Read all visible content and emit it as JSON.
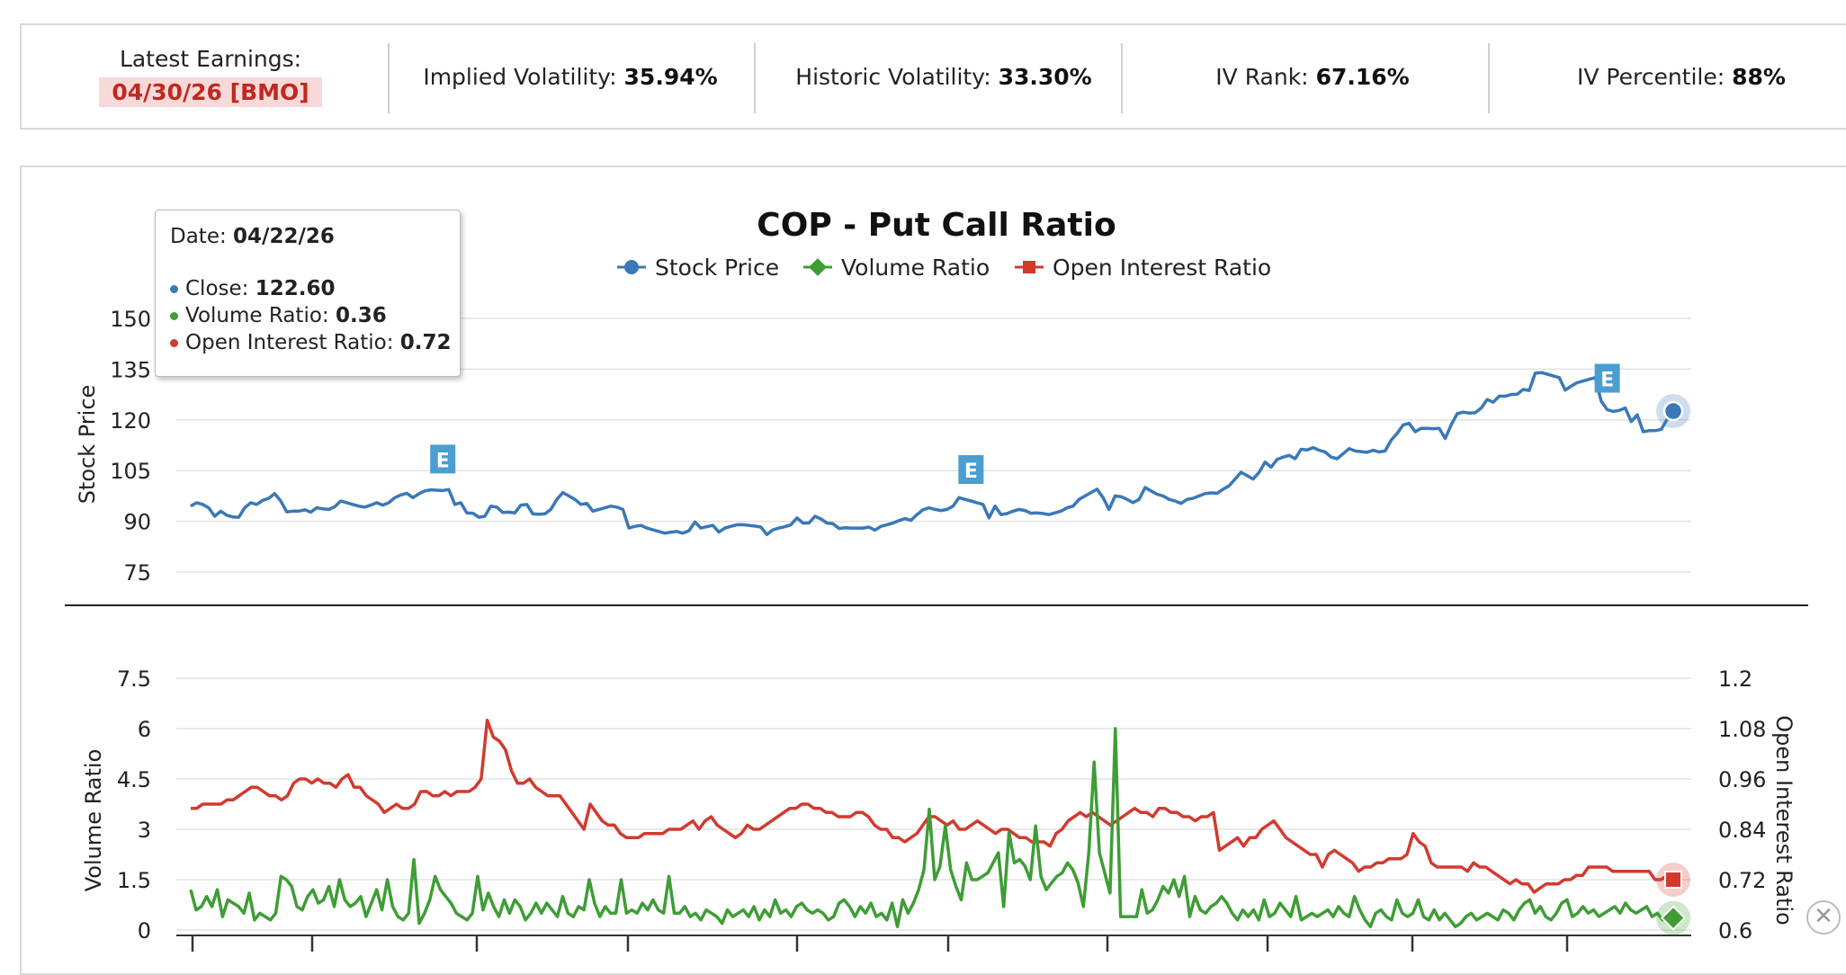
{
  "header": {
    "earnings_label": "Latest Earnings:",
    "earnings_date": "04/30/26 [BMO]",
    "stats": [
      {
        "label": "Implied Volatility:",
        "value": "35.94%"
      },
      {
        "label": "Historic Volatility:",
        "value": "33.30%"
      },
      {
        "label": "IV Rank:",
        "value": "67.16%"
      },
      {
        "label": "IV Percentile:",
        "value": "88%"
      }
    ]
  },
  "tooltip": {
    "date_label": "Date:",
    "date_value": "04/22/26",
    "close_label": "Close:",
    "close_value": "122.60",
    "volume_label": "Volume Ratio:",
    "volume_value": "0.36",
    "oi_label": "Open Interest Ratio:",
    "oi_value": "0.72"
  },
  "colors": {
    "stock": "#3a78b8",
    "volume": "#3e9d35",
    "open_interest": "#d23a2e",
    "earnings_marker": "#4a9ed1",
    "earnings_date_bg": "#f8d9d9",
    "earnings_date_text": "#c0281f"
  },
  "close_icon": "close-icon",
  "chart_data": {
    "type": "line",
    "title": "COP - Put Call Ratio",
    "legend": [
      "Stock Price",
      "Volume Ratio",
      "Open Interest Ratio"
    ],
    "legend_position": "top-center",
    "earnings_marker_label": "E",
    "earnings_markers": [
      42,
      130,
      236
    ],
    "upper": {
      "ylabel": "Stock Price",
      "ylim": [
        75,
        150
      ],
      "yticks": [
        "150",
        "135",
        "120",
        "105",
        "90",
        "75"
      ],
      "series": [
        {
          "name": "Stock Price",
          "values": [
            94.5,
            95.5,
            95,
            94,
            91.5,
            93,
            91.8,
            91.3,
            91.2,
            94,
            95.5,
            95,
            96.2,
            96.8,
            98.2,
            96,
            92.8,
            93,
            93,
            93.4,
            92.7,
            94,
            93.7,
            93.5,
            94.3,
            96,
            95.5,
            95,
            94.5,
            94.2,
            94.8,
            95.5,
            94.8,
            95.5,
            97,
            97.8,
            98.3,
            97,
            98.1,
            99,
            99.3,
            99.2,
            99.1,
            99.4,
            95,
            95.5,
            92.5,
            92.4,
            91.2,
            91.5,
            94.5,
            94.2,
            92.6,
            92.7,
            92.5,
            94.8,
            95,
            92.2,
            92.1,
            92.2,
            93.5,
            96.5,
            98.5,
            97.5,
            96.5,
            95,
            95.3,
            93,
            93.5,
            94,
            94.5,
            94.2,
            93.5,
            88,
            88.5,
            88.8,
            88,
            87.5,
            87,
            86.5,
            86.8,
            87,
            86.5,
            87.2,
            89.8,
            88,
            88.4,
            88.8,
            86.8,
            88,
            88.5,
            89,
            89,
            88.8,
            88.6,
            88.3,
            86.1,
            87.5,
            88,
            88.4,
            89,
            91,
            89.5,
            89.5,
            91.5,
            90.7,
            89.5,
            89.3,
            87.9,
            88.1,
            88,
            88,
            88,
            88.3,
            87.4,
            88.5,
            89,
            89.5,
            90.2,
            90.8,
            90.3,
            92,
            93.4,
            94,
            93.5,
            93.2,
            93.5,
            94.5,
            97,
            96.5,
            96,
            95.5,
            95,
            91,
            94.5,
            92,
            92.3,
            93,
            93.5,
            93.2,
            92.4,
            92.5,
            92.3,
            92,
            92.5,
            93,
            94,
            94.5,
            96.5,
            97.5,
            98.5,
            99.5,
            97,
            93.5,
            97.5,
            97.3,
            96.5,
            95.5,
            96.5,
            100,
            99,
            98,
            97.5,
            96.5,
            96,
            95.3,
            96.5,
            96.8,
            97.5,
            98.2,
            98.4,
            98.3,
            99.5,
            100.5,
            102.5,
            104.5,
            103.5,
            102.5,
            104.5,
            107.5,
            106,
            108.3,
            109,
            109.5,
            108.5,
            111.3,
            111.1,
            111.8,
            111,
            110.5,
            109,
            108.5,
            110,
            111.5,
            110.8,
            110.6,
            110.4,
            111,
            110.5,
            110.8,
            114,
            116,
            118.5,
            119,
            116.5,
            117.5,
            117.5,
            117.4,
            117.5,
            114.5,
            118.5,
            121.8,
            122.3,
            122,
            122.1,
            123.5,
            126,
            125.2,
            127,
            127,
            127.5,
            127.6,
            129,
            128.7,
            133.8,
            134,
            133.5,
            133,
            132.5,
            128.8,
            130,
            131,
            131.5,
            132,
            132.5,
            125.5,
            123,
            122.5,
            122.8,
            123.5,
            119.5,
            121.5,
            116.5,
            116.8,
            116.8,
            117.2,
            120.2,
            122.6
          ]
        }
      ]
    },
    "lower": {
      "ylabel_left": "Volume Ratio",
      "ylabel_right": "Open Interest Ratio",
      "ylim_left": [
        0,
        7.5
      ],
      "ylim_right": [
        0.6,
        1.2
      ],
      "yticks_left": [
        "7.5",
        "6",
        "4.5",
        "3",
        "1.5",
        "0"
      ],
      "yticks_right": [
        "1.2",
        "1.08",
        "0.96",
        "0.84",
        "0.72",
        "0.6"
      ],
      "series": [
        {
          "name": "Volume Ratio",
          "axis": "left",
          "values": [
            1.2,
            0.6,
            0.7,
            1,
            0.7,
            1.2,
            0.4,
            0.9,
            0.8,
            0.7,
            0.5,
            1.1,
            0.3,
            0.5,
            0.4,
            0.3,
            0.5,
            1.6,
            1.5,
            1.3,
            0.7,
            0.6,
            1,
            1.2,
            0.8,
            0.9,
            1.3,
            0.7,
            1.5,
            0.9,
            0.7,
            0.8,
            1,
            0.4,
            0.8,
            1.2,
            0.6,
            1.5,
            0.7,
            0.4,
            0.3,
            0.5,
            2.1,
            0.2,
            0.5,
            0.9,
            1.6,
            1.2,
            1,
            0.8,
            0.5,
            0.4,
            0.3,
            0.5,
            1.6,
            0.6,
            1.1,
            0.7,
            0.4,
            0.9,
            0.5,
            0.9,
            0.7,
            0.3,
            0.5,
            0.8,
            0.5,
            0.8,
            0.6,
            0.4,
            1,
            0.5,
            0.4,
            0.7,
            0.6,
            1.5,
            0.8,
            0.4,
            0.7,
            0.5,
            0.5,
            1.5,
            0.5,
            0.6,
            0.5,
            0.8,
            0.6,
            0.9,
            0.6,
            0.5,
            1.6,
            0.5,
            0.5,
            0.7,
            0.4,
            0.5,
            0.3,
            0.6,
            0.5,
            0.4,
            0.2,
            0.6,
            0.4,
            0.5,
            0.6,
            0.4,
            0.7,
            0.3,
            0.6,
            0.4,
            0.9,
            0.5,
            0.6,
            0.4,
            0.7,
            0.8,
            0.6,
            0.5,
            0.6,
            0.5,
            0.3,
            0.4,
            0.8,
            0.9,
            0.7,
            0.4,
            0.7,
            0.5,
            0.8,
            0.4,
            0.5,
            0.3,
            0.8,
            0.1,
            0.9,
            0.5,
            0.8,
            1.2,
            1.8,
            3.6,
            1.5,
            1.9,
            3.1,
            1.8,
            1.3,
            0.9,
            2,
            1.5,
            1.5,
            1.6,
            1.7,
            2,
            2.3,
            0.7,
            2.9,
            2,
            2.1,
            1.9,
            1.5,
            3.1,
            1.6,
            1.2,
            1.4,
            1.6,
            1.7,
            2,
            1.8,
            1.4,
            0.7,
            2.3,
            5,
            2.3,
            1.7,
            1.1,
            6,
            0.4,
            0.4,
            0.4,
            0.4,
            1.2,
            0.5,
            0.6,
            0.9,
            1.3,
            1.1,
            1.5,
            1,
            1.6,
            0.4,
            1,
            0.6,
            0.5,
            0.7,
            0.8,
            1,
            0.8,
            0.5,
            0.3,
            0.6,
            0.4,
            0.6,
            0.3,
            0.9,
            0.4,
            0.5,
            0.8,
            0.6,
            0.4,
            1,
            0.3,
            0.4,
            0.5,
            0.4,
            0.5,
            0.6,
            0.4,
            0.7,
            0.5,
            0.4,
            1,
            0.6,
            0.3,
            0.1,
            0.5,
            0.6,
            0.4,
            0.3,
            0.9,
            0.5,
            0.4,
            0.5,
            0.9,
            0.4,
            0.3,
            0.6,
            0.3,
            0.5,
            0.3,
            0.1,
            0.2,
            0.4,
            0.5,
            0.3,
            0.4,
            0.5,
            0.4,
            0.3,
            0.6,
            0.5,
            0.3,
            0.6,
            0.8,
            0.9,
            0.5,
            0.7,
            0.4,
            0.3,
            0.5,
            0.8,
            0.9,
            0.4,
            0.5,
            0.7,
            0.5,
            0.6,
            0.4,
            0.5,
            0.6,
            0.7,
            0.5,
            0.8,
            0.6,
            0.5,
            0.6,
            0.7,
            0.4,
            0.5,
            0.3,
            0.4,
            0.36
          ]
        },
        {
          "name": "Open Interest Ratio",
          "axis": "right",
          "values": [
            0.89,
            0.89,
            0.9,
            0.9,
            0.9,
            0.9,
            0.91,
            0.91,
            0.92,
            0.93,
            0.94,
            0.94,
            0.93,
            0.92,
            0.92,
            0.91,
            0.92,
            0.95,
            0.96,
            0.96,
            0.95,
            0.96,
            0.95,
            0.95,
            0.94,
            0.96,
            0.97,
            0.94,
            0.94,
            0.92,
            0.91,
            0.9,
            0.88,
            0.89,
            0.9,
            0.89,
            0.89,
            0.9,
            0.93,
            0.93,
            0.92,
            0.92,
            0.93,
            0.92,
            0.93,
            0.93,
            0.93,
            0.94,
            0.96,
            1.1,
            1.06,
            1.05,
            1.03,
            0.98,
            0.95,
            0.95,
            0.96,
            0.94,
            0.93,
            0.92,
            0.92,
            0.92,
            0.9,
            0.88,
            0.86,
            0.84,
            0.9,
            0.88,
            0.86,
            0.85,
            0.85,
            0.83,
            0.82,
            0.82,
            0.82,
            0.83,
            0.83,
            0.83,
            0.83,
            0.84,
            0.84,
            0.84,
            0.85,
            0.86,
            0.84,
            0.86,
            0.87,
            0.85,
            0.84,
            0.83,
            0.82,
            0.83,
            0.85,
            0.84,
            0.84,
            0.85,
            0.86,
            0.87,
            0.88,
            0.89,
            0.89,
            0.9,
            0.9,
            0.89,
            0.89,
            0.88,
            0.88,
            0.87,
            0.87,
            0.87,
            0.88,
            0.88,
            0.87,
            0.85,
            0.84,
            0.84,
            0.82,
            0.82,
            0.81,
            0.82,
            0.83,
            0.85,
            0.87,
            0.87,
            0.86,
            0.85,
            0.86,
            0.84,
            0.84,
            0.85,
            0.86,
            0.85,
            0.84,
            0.83,
            0.84,
            0.84,
            0.83,
            0.82,
            0.82,
            0.81,
            0.81,
            0.81,
            0.8,
            0.83,
            0.84,
            0.86,
            0.87,
            0.88,
            0.87,
            0.88,
            0.87,
            0.86,
            0.85,
            0.86,
            0.87,
            0.88,
            0.89,
            0.88,
            0.88,
            0.87,
            0.89,
            0.89,
            0.88,
            0.88,
            0.87,
            0.87,
            0.86,
            0.87,
            0.87,
            0.88,
            0.79,
            0.8,
            0.81,
            0.82,
            0.8,
            0.82,
            0.82,
            0.84,
            0.85,
            0.86,
            0.84,
            0.82,
            0.81,
            0.8,
            0.79,
            0.78,
            0.78,
            0.75,
            0.78,
            0.79,
            0.78,
            0.77,
            0.76,
            0.74,
            0.75,
            0.75,
            0.76,
            0.76,
            0.77,
            0.77,
            0.77,
            0.78,
            0.83,
            0.81,
            0.8,
            0.76,
            0.75,
            0.75,
            0.75,
            0.75,
            0.75,
            0.74,
            0.76,
            0.75,
            0.75,
            0.74,
            0.73,
            0.72,
            0.71,
            0.72,
            0.71,
            0.71,
            0.69,
            0.7,
            0.71,
            0.71,
            0.71,
            0.72,
            0.72,
            0.73,
            0.73,
            0.75,
            0.75,
            0.75,
            0.75,
            0.74,
            0.74,
            0.74,
            0.74,
            0.74,
            0.74,
            0.74,
            0.72,
            0.72,
            0.73,
            0.72
          ]
        }
      ]
    }
  }
}
